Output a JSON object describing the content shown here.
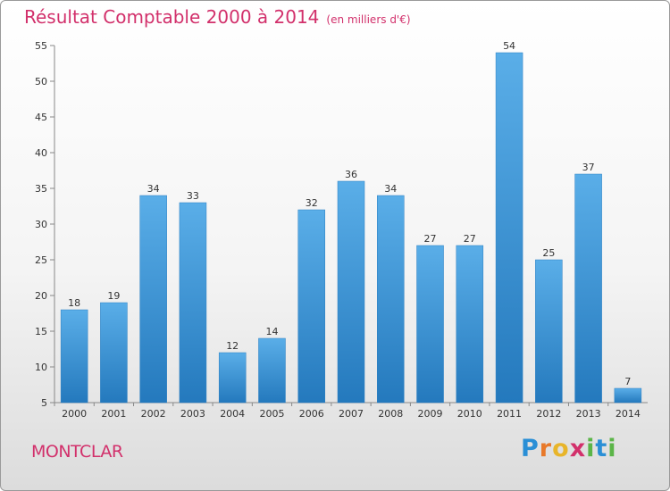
{
  "header": {
    "title": "Résultat Comptable 2000 à 2014",
    "subtitle": "(en milliers d'€)"
  },
  "footer": {
    "commune": "MONTCLAR",
    "logo_letters": [
      "P",
      "r",
      "o",
      "x",
      "i",
      "t",
      "i"
    ],
    "logo_colors": [
      "#2a8fd6",
      "#e8792a",
      "#e8b52a",
      "#d2306b",
      "#5bb548",
      "#2a8fd6",
      "#5bb548"
    ]
  },
  "chart_data": {
    "type": "bar",
    "title": "Résultat Comptable 2000 à 2014",
    "subtitle": "(en milliers d'€)",
    "categories": [
      "2000",
      "2001",
      "2002",
      "2003",
      "2004",
      "2005",
      "2006",
      "2007",
      "2008",
      "2009",
      "2010",
      "2011",
      "2012",
      "2013",
      "2014"
    ],
    "values": [
      18,
      19,
      34,
      33,
      12,
      14,
      32,
      36,
      34,
      27,
      27,
      54,
      25,
      37,
      7
    ],
    "ylim": [
      5,
      55
    ],
    "yticks": [
      5,
      10,
      15,
      20,
      25,
      30,
      35,
      40,
      45,
      50,
      55
    ],
    "grid": false,
    "bar_color_top": "#5aaee8",
    "bar_color_bottom": "#2479bd"
  }
}
